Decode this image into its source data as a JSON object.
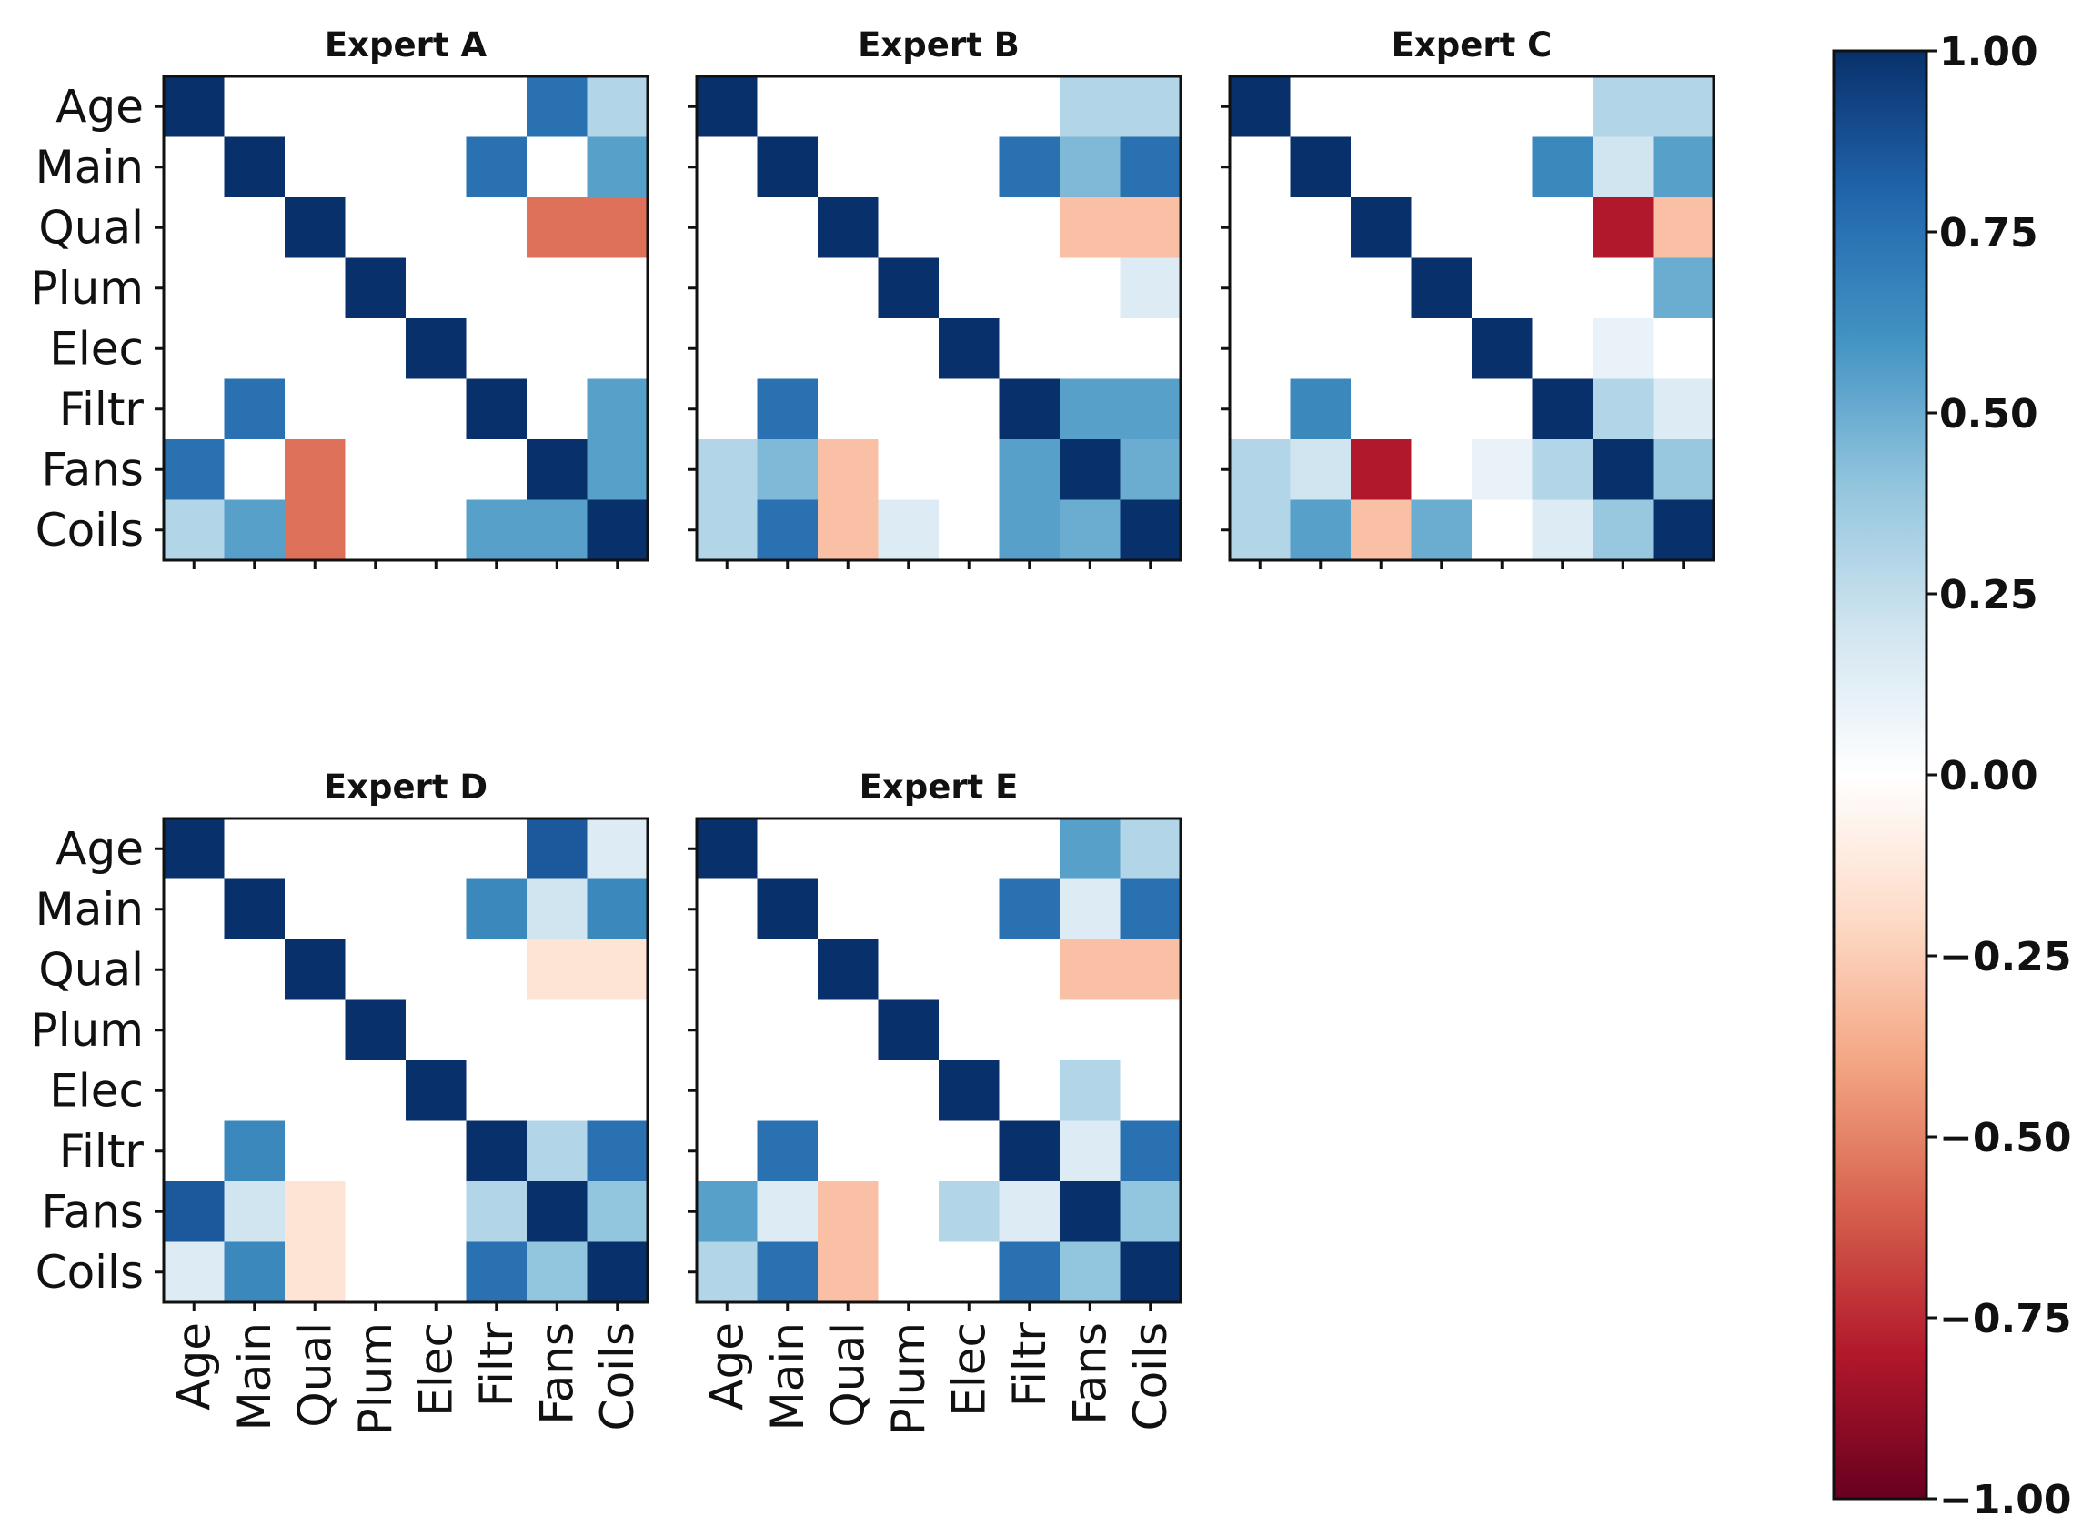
{
  "chart_data": {
    "type": "heatmap",
    "variables": [
      "Age",
      "Main",
      "Qual",
      "Plum",
      "Elec",
      "Filtr",
      "Fans",
      "Coils"
    ],
    "colormap": "RdBu",
    "colorbar": {
      "min": -1.0,
      "max": 1.0,
      "ticks": [
        "1.00",
        "0.75",
        "0.50",
        "0.25",
        "0.00",
        "−0.25",
        "−0.50",
        "−0.75",
        "−1.00"
      ],
      "tick_values": [
        1.0,
        0.75,
        0.5,
        0.25,
        0.0,
        -0.25,
        -0.5,
        -0.75,
        -1.0
      ]
    },
    "panels": [
      {
        "title": "Expert A",
        "matrix": [
          [
            1,
            0,
            0,
            0,
            0,
            0,
            0.75,
            0.3
          ],
          [
            0,
            1,
            0,
            0,
            0,
            0.75,
            0,
            0.55
          ],
          [
            0,
            0,
            1,
            0,
            0,
            0,
            -0.55,
            -0.55
          ],
          [
            0,
            0,
            0,
            1,
            0,
            0,
            0,
            0
          ],
          [
            0,
            0,
            0,
            0,
            1,
            0,
            0,
            0
          ],
          [
            0,
            0.75,
            0,
            0,
            0,
            1,
            0,
            0.55
          ],
          [
            0.75,
            0,
            -0.55,
            0,
            0,
            0,
            1,
            0.55
          ],
          [
            0.3,
            0.55,
            -0.55,
            0,
            0,
            0.55,
            0.55,
            1
          ]
        ]
      },
      {
        "title": "Expert B",
        "matrix": [
          [
            1,
            0,
            0,
            0,
            0,
            0,
            0.3,
            0.3
          ],
          [
            0,
            1,
            0,
            0,
            0,
            0.75,
            0.45,
            0.75
          ],
          [
            0,
            0,
            1,
            0,
            0,
            0,
            -0.3,
            -0.3
          ],
          [
            0,
            0,
            0,
            1,
            0,
            0,
            0,
            0.15
          ],
          [
            0,
            0,
            0,
            0,
            1,
            0,
            0,
            0
          ],
          [
            0,
            0.75,
            0,
            0,
            0,
            1,
            0.55,
            0.55
          ],
          [
            0.3,
            0.45,
            -0.3,
            0,
            0,
            0.55,
            1,
            0.5
          ],
          [
            0.3,
            0.75,
            -0.3,
            0.15,
            0,
            0.55,
            0.5,
            1
          ]
        ]
      },
      {
        "title": "Expert C",
        "matrix": [
          [
            1,
            0,
            0,
            0,
            0,
            0,
            0.3,
            0.3
          ],
          [
            0,
            1,
            0,
            0,
            0,
            0.65,
            0.2,
            0.55
          ],
          [
            0,
            0,
            1,
            0,
            0,
            0,
            -0.8,
            -0.3
          ],
          [
            0,
            0,
            0,
            1,
            0,
            0,
            0,
            0.5
          ],
          [
            0,
            0,
            0,
            0,
            1,
            0,
            0.1,
            0
          ],
          [
            0,
            0.65,
            0,
            0,
            0,
            1,
            0.3,
            0.15
          ],
          [
            0.3,
            0.2,
            -0.8,
            0,
            0.1,
            0.3,
            1,
            0.38
          ],
          [
            0.3,
            0.55,
            -0.3,
            0.5,
            0,
            0.15,
            0.38,
            1
          ]
        ]
      },
      {
        "title": "Expert D",
        "matrix": [
          [
            1,
            0,
            0,
            0,
            0,
            0,
            0.85,
            0.15
          ],
          [
            0,
            1,
            0,
            0,
            0,
            0.65,
            0.2,
            0.65
          ],
          [
            0,
            0,
            1,
            0,
            0,
            0,
            -0.15,
            -0.15
          ],
          [
            0,
            0,
            0,
            1,
            0,
            0,
            0,
            0
          ],
          [
            0,
            0,
            0,
            0,
            1,
            0,
            0,
            0
          ],
          [
            0,
            0.65,
            0,
            0,
            0,
            1,
            0.3,
            0.75
          ],
          [
            0.85,
            0.2,
            -0.15,
            0,
            0,
            0.3,
            1,
            0.4
          ],
          [
            0.15,
            0.65,
            -0.15,
            0,
            0,
            0.75,
            0.4,
            1
          ]
        ]
      },
      {
        "title": "Expert E",
        "matrix": [
          [
            1,
            0,
            0,
            0,
            0,
            0,
            0.55,
            0.3
          ],
          [
            0,
            1,
            0,
            0,
            0,
            0.75,
            0.15,
            0.75
          ],
          [
            0,
            0,
            1,
            0,
            0,
            0,
            -0.3,
            -0.3
          ],
          [
            0,
            0,
            0,
            1,
            0,
            0,
            0,
            0
          ],
          [
            0,
            0,
            0,
            0,
            1,
            0,
            0.3,
            0
          ],
          [
            0,
            0.75,
            0,
            0,
            0,
            1,
            0.15,
            0.75
          ],
          [
            0.55,
            0.15,
            -0.3,
            0,
            0.3,
            0.15,
            1,
            0.4
          ],
          [
            0.3,
            0.75,
            -0.3,
            0,
            0,
            0.75,
            0.4,
            1
          ]
        ]
      }
    ]
  }
}
